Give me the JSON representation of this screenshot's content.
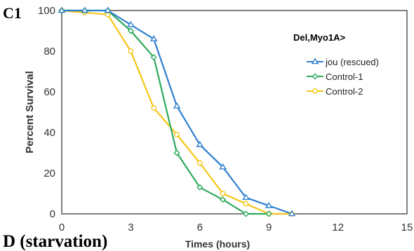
{
  "panel_labels": {
    "top": "C1",
    "bottom": "D (starvation)"
  },
  "chart_data": {
    "type": "line",
    "title": "",
    "xlabel": "Times (hours)",
    "ylabel": "Percent Survival",
    "xlim": [
      0,
      15
    ],
    "ylim": [
      0,
      100
    ],
    "x_ticks": [
      "0",
      "3",
      "6",
      "9",
      "12",
      "15"
    ],
    "y_ticks": [
      "0",
      "20",
      "40",
      "60",
      "80",
      "100"
    ],
    "grid": false,
    "legend": {
      "title": "Del,Myo1A>",
      "position": "top-right"
    },
    "series": [
      {
        "name": "jou (rescued)",
        "color": "#2f7fcf",
        "marker": "triangle",
        "x": [
          0,
          1,
          2,
          3,
          4,
          5,
          6,
          7,
          8,
          9,
          10
        ],
        "y": [
          100,
          100,
          100,
          93,
          86,
          53,
          34,
          23,
          8,
          4,
          0
        ]
      },
      {
        "name": "Control-1",
        "color": "#2eaa5e",
        "marker": "diamond",
        "x": [
          0,
          1,
          2,
          3,
          4,
          5,
          6,
          7,
          8,
          9
        ],
        "y": [
          100,
          100,
          100,
          90,
          77,
          30,
          13,
          7,
          0,
          0
        ]
      },
      {
        "name": "Control-2",
        "color": "#f5c518",
        "marker": "circle",
        "x": [
          0,
          1,
          2,
          3,
          4,
          5,
          6,
          7,
          8,
          9,
          10
        ],
        "y": [
          100,
          99,
          98,
          80,
          52,
          39,
          25,
          10,
          5,
          0,
          0
        ]
      }
    ]
  }
}
